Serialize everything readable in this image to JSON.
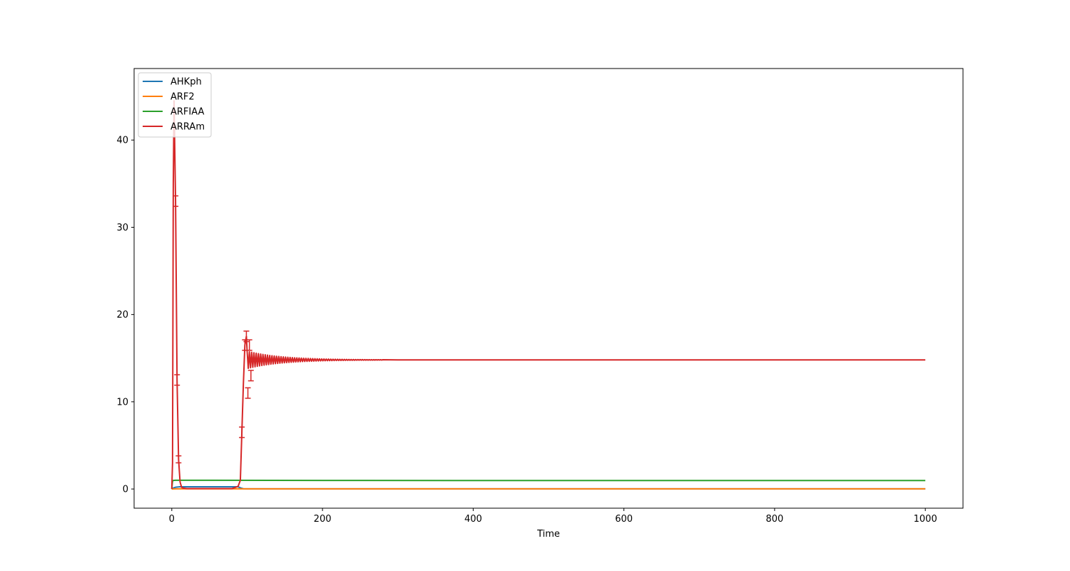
{
  "chart_data": {
    "type": "line",
    "title": "",
    "xlabel": "Time",
    "ylabel": "",
    "xlim": [
      -50,
      1050
    ],
    "ylim": [
      -2.2,
      48.2
    ],
    "xticks": [
      0,
      200,
      400,
      600,
      800,
      1000
    ],
    "yticks": [
      0,
      10,
      20,
      30,
      40
    ],
    "grid": false,
    "legend_position": "top-left",
    "series": [
      {
        "name": "AHKph",
        "color": "#1f77b4",
        "x": [
          0,
          1,
          3,
          5,
          10,
          15,
          30,
          60,
          88,
          92,
          95,
          100,
          200,
          500,
          1000
        ],
        "y": [
          0,
          0.05,
          0.15,
          0.2,
          0.25,
          0.25,
          0.25,
          0.25,
          0.25,
          0.1,
          0.03,
          0.02,
          0.02,
          0.02,
          0.02
        ]
      },
      {
        "name": "ARF2",
        "color": "#ff7f0e",
        "x": [
          0,
          5,
          50,
          200,
          500,
          1000
        ],
        "y": [
          0,
          0.02,
          0.02,
          0.02,
          0.02,
          0.02
        ]
      },
      {
        "name": "ARFIAA",
        "color": "#2ca02c",
        "x": [
          0,
          1,
          2,
          5,
          50,
          200,
          500,
          1000
        ],
        "y": [
          0,
          0.9,
          0.98,
          1.0,
          1.0,
          0.98,
          0.97,
          0.97
        ]
      },
      {
        "name": "ARRAm",
        "color": "#d62728",
        "x": [
          0,
          1,
          2,
          3,
          5,
          7,
          9,
          11,
          13,
          15,
          20,
          40,
          60,
          80,
          88,
          91,
          93,
          95,
          97,
          99,
          101,
          103,
          105,
          107,
          109,
          112,
          115,
          120,
          130,
          140,
          150,
          160,
          170,
          180,
          190,
          200,
          220,
          250,
          300,
          500,
          700,
          1000
        ],
        "y": [
          0,
          3.0,
          35.0,
          44.5,
          33.0,
          12.5,
          3.4,
          0.8,
          0.2,
          0.1,
          0.05,
          0.05,
          0.05,
          0.05,
          0.3,
          1.0,
          6.5,
          12.0,
          16.5,
          17.5,
          11.0,
          16.5,
          13.0,
          15.8,
          14.0,
          15.5,
          14.3,
          15.2,
          14.9,
          14.8,
          14.85,
          14.8,
          14.82,
          14.8,
          14.81,
          14.8,
          14.8,
          14.8,
          14.8,
          14.8,
          14.8,
          14.8
        ],
        "error_bars": [
          {
            "x": 5,
            "y": 33.0,
            "err": 0.6
          },
          {
            "x": 7,
            "y": 12.5,
            "err": 0.6
          },
          {
            "x": 9,
            "y": 3.4,
            "err": 0.4
          },
          {
            "x": 93,
            "y": 6.5,
            "err": 0.6
          },
          {
            "x": 97,
            "y": 16.5,
            "err": 0.6
          },
          {
            "x": 99,
            "y": 17.5,
            "err": 0.6
          },
          {
            "x": 101,
            "y": 11.0,
            "err": 0.6
          },
          {
            "x": 103,
            "y": 16.5,
            "err": 0.6
          },
          {
            "x": 105,
            "y": 13.0,
            "err": 0.6
          }
        ],
        "oscillation": {
          "x_start": 100,
          "x_end": 280,
          "center": 14.8,
          "amplitude_start": 1.0,
          "period": 3
        }
      }
    ]
  }
}
